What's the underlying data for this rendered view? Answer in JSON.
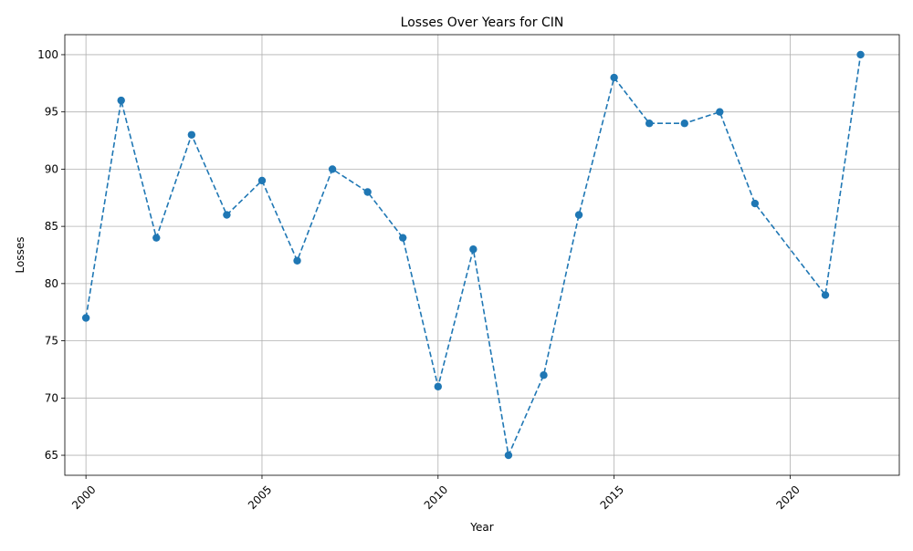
{
  "chart_data": {
    "type": "line",
    "title": "Losses Over Years for CIN",
    "xlabel": "Year",
    "ylabel": "Losses",
    "xlim": [
      1999.4,
      2023.1
    ],
    "ylim": [
      63.25,
      101.75
    ],
    "xticks": [
      2000,
      2005,
      2010,
      2015,
      2020
    ],
    "yticks": [
      65,
      70,
      75,
      80,
      85,
      90,
      95,
      100
    ],
    "x_tick_rotation_deg": 45,
    "grid": true,
    "line_style": "dashed",
    "marker": "circle",
    "color": "#1f77b4",
    "series": [
      {
        "x": [
          2000,
          2001,
          2002,
          2003,
          2004,
          2005,
          2006,
          2007,
          2008,
          2009,
          2010,
          2011,
          2012,
          2013,
          2014,
          2015,
          2016,
          2017,
          2018,
          2019,
          2021,
          2022
        ],
        "y": [
          77,
          96,
          84,
          93,
          86,
          89,
          82,
          90,
          88,
          84,
          71,
          83,
          65,
          72,
          86,
          98,
          94,
          94,
          95,
          87,
          79,
          100
        ]
      }
    ]
  }
}
